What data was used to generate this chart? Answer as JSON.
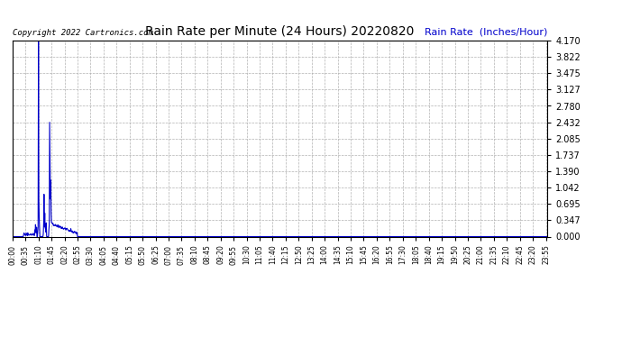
{
  "title": "Rain Rate per Minute (24 Hours) 20220820",
  "copyright_text": "Copyright 2022 Cartronics.com",
  "ylabel": "Rain Rate  (Inches/Hour)",
  "ylabel_color": "#0000cc",
  "copyright_color": "#000000",
  "title_color": "#000000",
  "line_color": "#0000cc",
  "background_color": "#ffffff",
  "plot_bg_color": "#ffffff",
  "grid_color": "#aaaaaa",
  "ylim": [
    0.0,
    4.17
  ],
  "yticks": [
    0.0,
    0.347,
    0.695,
    1.042,
    1.39,
    1.737,
    2.085,
    2.432,
    2.78,
    3.127,
    3.475,
    3.822,
    4.17
  ],
  "total_minutes": 1440,
  "xtick_interval": 35
}
